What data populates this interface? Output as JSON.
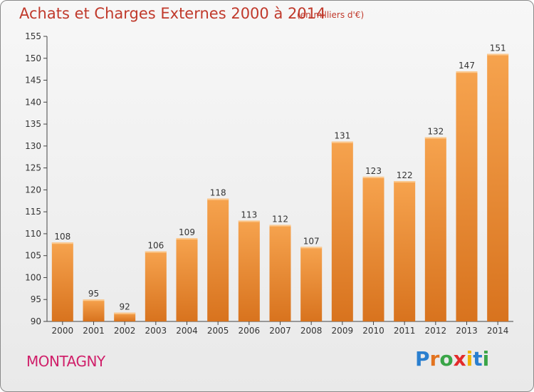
{
  "chart_data": {
    "type": "bar",
    "title": "Achats et Charges Externes 2000 à 2014",
    "subtitle": "(en milliers d'€)",
    "categories": [
      "2000",
      "2001",
      "2002",
      "2003",
      "2004",
      "2005",
      "2006",
      "2007",
      "2008",
      "2009",
      "2010",
      "2011",
      "2012",
      "2013",
      "2014"
    ],
    "values": [
      108,
      95,
      92,
      106,
      109,
      118,
      113,
      112,
      107,
      131,
      123,
      122,
      132,
      147,
      151
    ],
    "ylim": [
      90,
      155
    ],
    "yticks": [
      90,
      95,
      100,
      105,
      110,
      115,
      120,
      125,
      130,
      135,
      140,
      145,
      150,
      155
    ],
    "grid": false,
    "bar_color_light": "#f6a34e",
    "bar_color_dark": "#d8731e"
  },
  "footer": {
    "town": "MONTAGNY",
    "logo_letters": [
      "P",
      "r",
      "o",
      "x",
      "i",
      "t",
      "i"
    ],
    "logo_colors": [
      "#2a7fcf",
      "#e2731f",
      "#3aa548",
      "#e32b2b",
      "#f0b400",
      "#2a7fcf",
      "#3aa548"
    ]
  }
}
